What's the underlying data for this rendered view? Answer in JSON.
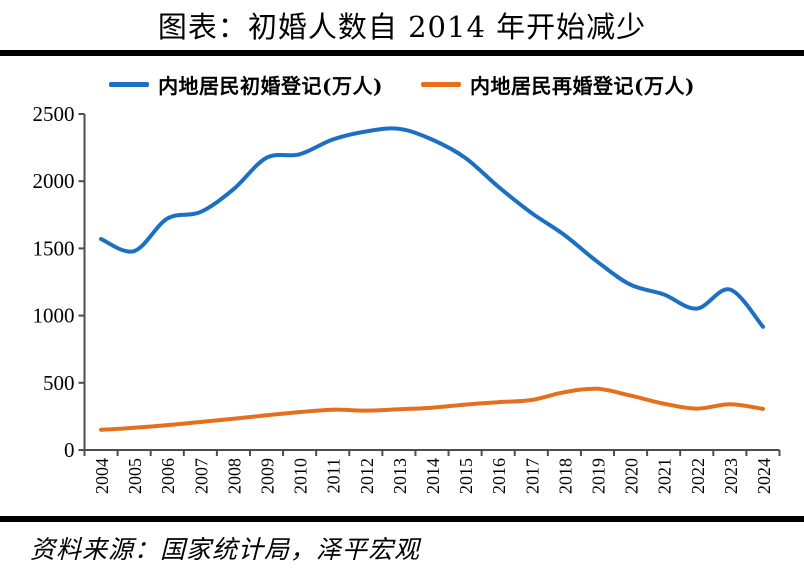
{
  "title": "图表：初婚人数自 2014 年开始减少",
  "source": "资料来源：国家统计局，泽平宏观",
  "legend": [
    {
      "label": "内地居民初婚登记(万人)",
      "color": "#1B70C4"
    },
    {
      "label": "内地居民再婚登记(万人)",
      "color": "#E4701E"
    }
  ],
  "colors": {
    "first_marriage_line": "#1B70C4",
    "remarriage_line": "#E4701E",
    "axis": "#4d4d4d",
    "rule": "#000000"
  },
  "chart_data": {
    "type": "line",
    "title": "图表：初婚人数自 2014 年开始减少",
    "categories": [
      "2004",
      "2005",
      "2006",
      "2007",
      "2008",
      "2009",
      "2010",
      "2011",
      "2012",
      "2013",
      "2014",
      "2015",
      "2016",
      "2017",
      "2018",
      "2019",
      "2020",
      "2021",
      "2022",
      "2023",
      "2024"
    ],
    "series": [
      {
        "name": "内地居民初婚登记(万人)",
        "color": "#1B70C4",
        "values": [
          1570,
          1480,
          1722,
          1770,
          1940,
          2174,
          2200,
          2310,
          2370,
          2390,
          2310,
          2175,
          1960,
          1765,
          1600,
          1400,
          1230,
          1158,
          1052,
          1194,
          917
        ]
      },
      {
        "name": "内地居民再婚登记(万人)",
        "color": "#E4701E",
        "values": [
          150,
          165,
          185,
          208,
          232,
          258,
          282,
          300,
          293,
          303,
          315,
          338,
          356,
          372,
          430,
          455,
          405,
          345,
          308,
          340,
          306
        ]
      }
    ],
    "xlabel": "",
    "ylabel": "",
    "ylim": [
      0,
      2500
    ],
    "yticks": [
      0,
      500,
      1000,
      1500,
      2000,
      2500
    ],
    "grid": false,
    "legend_position": "top",
    "smooth_lines": true,
    "x_tick_style": "between-categories, labels rotated 90° counter-clockwise"
  }
}
